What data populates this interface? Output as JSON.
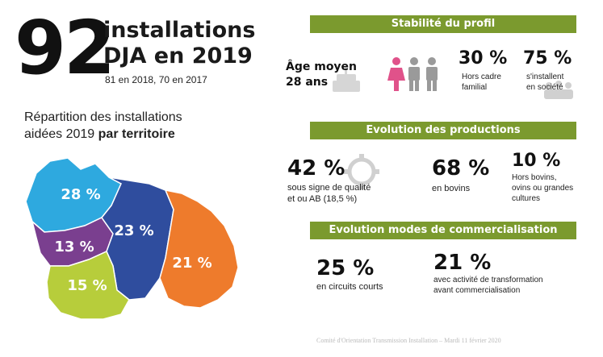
{
  "header": {
    "number": "92",
    "line1": "installations",
    "line2": "DJA en 2019",
    "sub": "81 en 2018, 70  en 2017"
  },
  "map": {
    "title_line1": "Répartition des installations",
    "title_line2_normal": "aidées 2019 ",
    "title_line2_bold": "par territoire",
    "regions": [
      {
        "label": "28 %",
        "value": 28,
        "color": "#2ea9df"
      },
      {
        "label": "13 %",
        "value": 13,
        "color": "#7a3f8f"
      },
      {
        "label": "23 %",
        "value": 23,
        "color": "#2f4d9e"
      },
      {
        "label": "21 %",
        "value": 21,
        "color": "#ee7b2c"
      },
      {
        "label": "15 %",
        "value": 15,
        "color": "#b7cd3b"
      }
    ]
  },
  "profile": {
    "band": "Stabilité du profil",
    "age_line1": "Âge moyen",
    "age_line2": "28 ans",
    "hors_pct": "30 %",
    "hors_line1": "Hors cadre",
    "hors_line2": "familial",
    "societe_pct": "75 %",
    "societe_line1": "s'installent",
    "societe_line2": "en société"
  },
  "productions": {
    "band": "Evolution des productions",
    "qual_pct": "42 %",
    "qual_line1": "sous signe de qualité",
    "qual_line2": "et ou AB (18,5 %)",
    "bovins_pct": "68 %",
    "bovins_line1": "en bovins",
    "hors_bovins_pct": "10 %",
    "hors_bovins_line1": "Hors bovins,",
    "hors_bovins_line2": "ovins ou grandes",
    "hors_bovins_line3": "cultures"
  },
  "commercial": {
    "band": "Evolution modes de commercialisation",
    "circuits_pct": "25 %",
    "circuits_line1": "en circuits courts",
    "transfo_pct": "21 %",
    "transfo_line1": "avec activité de transformation",
    "transfo_line2": "avant commercialisation"
  },
  "footer": "Comité d'Orientation Transmission Installation – Mardi 11 février 2020",
  "colors": {
    "band": "#7b9a2e",
    "female_icon": "#e0528a",
    "male_icon": "#9a9a9a"
  }
}
